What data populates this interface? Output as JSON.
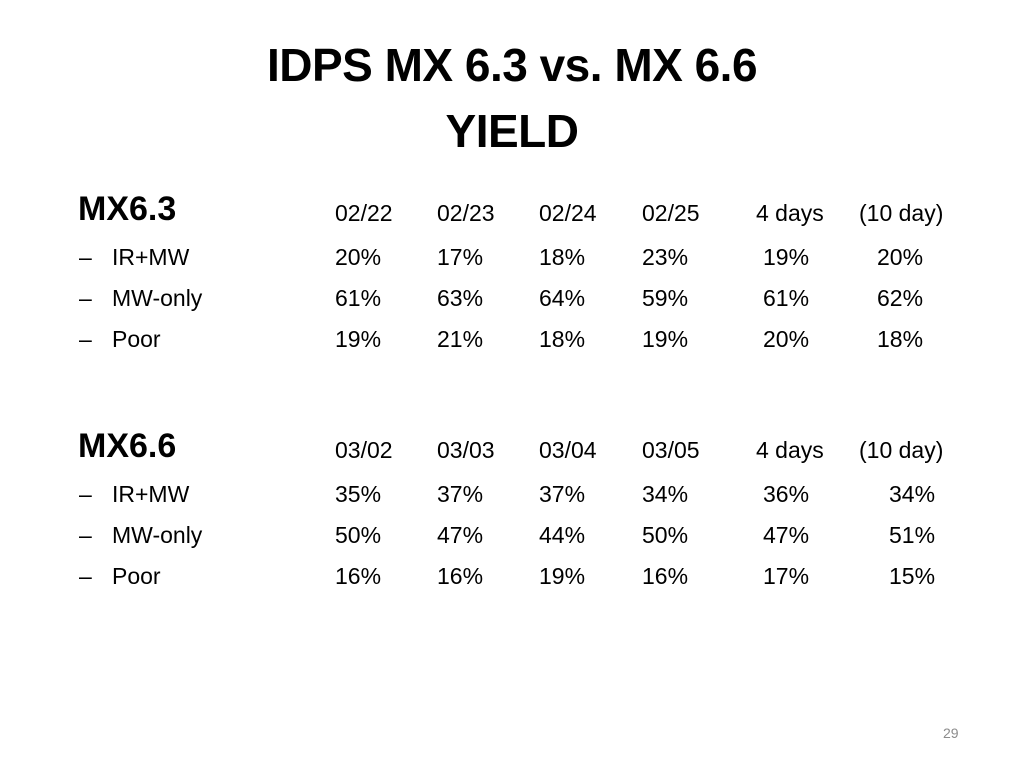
{
  "slide": {
    "title_line1": "IDPS MX 6.3 vs. MX 6.6",
    "title_line2": "YIELD",
    "page_number": "29"
  },
  "sections": [
    {
      "heading": "MX6.3",
      "columns": [
        "02/22",
        "02/23",
        "02/24",
        "02/25",
        "4 days",
        "(10 day)"
      ],
      "rows": [
        {
          "dash": "–",
          "label": "IR+MW",
          "values": [
            "20%",
            "17%",
            "18%",
            "23%",
            "19%",
            "20%"
          ]
        },
        {
          "dash": "–",
          "label": "MW-only",
          "values": [
            "61%",
            "63%",
            "64%",
            "59%",
            "61%",
            "62%"
          ]
        },
        {
          "dash": "–",
          "label": "Poor",
          "values": [
            "19%",
            "21%",
            "18%",
            "19%",
            "20%",
            "18%"
          ]
        }
      ]
    },
    {
      "heading": "MX6.6",
      "columns": [
        "03/02",
        "03/03",
        "03/04",
        "03/05",
        "4 days",
        "(10 day)"
      ],
      "rows": [
        {
          "dash": "–",
          "label": "IR+MW",
          "values": [
            "35%",
            "37%",
            "37%",
            "34%",
            "36%",
            "34%"
          ]
        },
        {
          "dash": "–",
          "label": "MW-only",
          "values": [
            "50%",
            "47%",
            "44%",
            "50%",
            "47%",
            "51%"
          ]
        },
        {
          "dash": "–",
          "label": "Poor",
          "values": [
            "16%",
            "16%",
            "19%",
            "16%",
            "17%",
            "15%"
          ]
        }
      ]
    }
  ]
}
